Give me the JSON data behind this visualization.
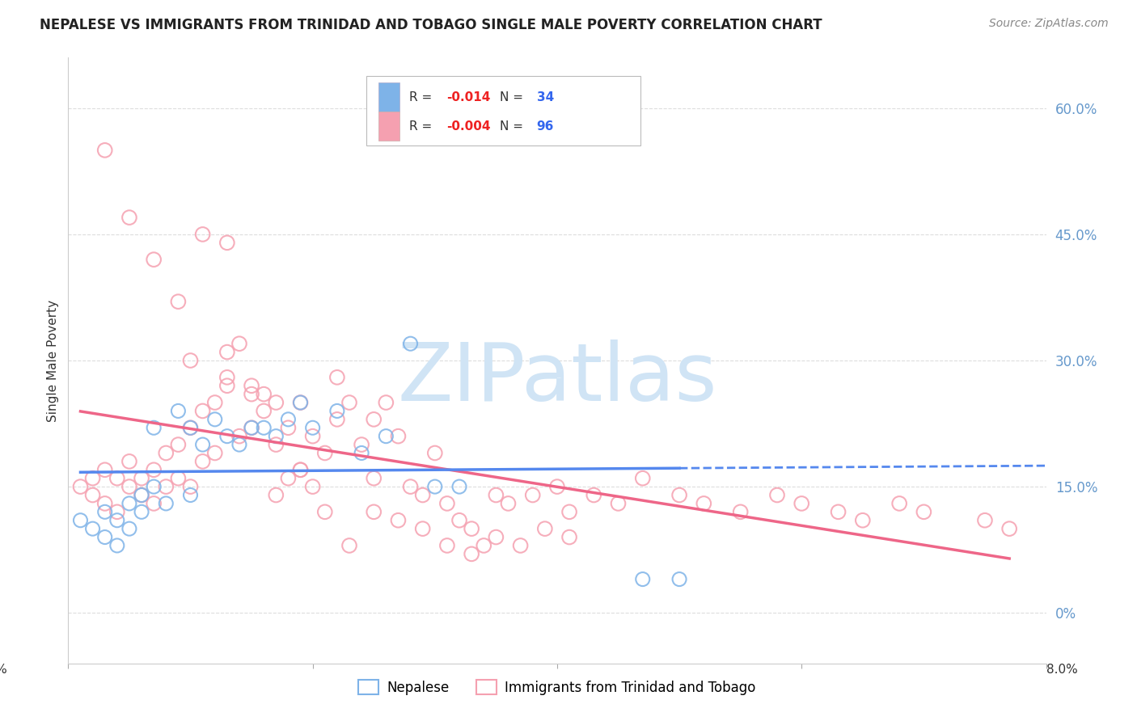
{
  "title": "NEPALESE VS IMMIGRANTS FROM TRINIDAD AND TOBAGO SINGLE MALE POVERTY CORRELATION CHART",
  "source": "Source: ZipAtlas.com",
  "ylabel": "Single Male Poverty",
  "legend_label1": "Nepalese",
  "legend_label2": "Immigrants from Trinidad and Tobago",
  "color_blue": "#7EB3E8",
  "color_pink": "#F5A0B0",
  "color_right_axis": "#6699CC",
  "ytick_values": [
    0.0,
    0.15,
    0.3,
    0.45,
    0.6
  ],
  "ytick_labels": [
    "0%",
    "15.0%",
    "30.0%",
    "45.0%",
    "60.0%"
  ],
  "xmin": 0.0,
  "xmax": 0.08,
  "ymin": -0.06,
  "ymax": 0.66,
  "nepalese_x": [
    0.001,
    0.002,
    0.003,
    0.003,
    0.004,
    0.004,
    0.005,
    0.005,
    0.006,
    0.006,
    0.007,
    0.007,
    0.008,
    0.009,
    0.01,
    0.01,
    0.011,
    0.012,
    0.013,
    0.014,
    0.015,
    0.016,
    0.017,
    0.018,
    0.019,
    0.02,
    0.022,
    0.024,
    0.026,
    0.028,
    0.03,
    0.032,
    0.047,
    0.05
  ],
  "nepalese_y": [
    0.11,
    0.1,
    0.12,
    0.09,
    0.11,
    0.08,
    0.1,
    0.13,
    0.12,
    0.14,
    0.22,
    0.15,
    0.13,
    0.24,
    0.14,
    0.22,
    0.2,
    0.23,
    0.21,
    0.2,
    0.22,
    0.22,
    0.21,
    0.23,
    0.25,
    0.22,
    0.24,
    0.19,
    0.21,
    0.32,
    0.15,
    0.15,
    0.04,
    0.04
  ],
  "tt_x": [
    0.001,
    0.002,
    0.002,
    0.003,
    0.003,
    0.004,
    0.004,
    0.005,
    0.005,
    0.006,
    0.006,
    0.007,
    0.007,
    0.008,
    0.008,
    0.009,
    0.009,
    0.01,
    0.01,
    0.01,
    0.011,
    0.011,
    0.012,
    0.012,
    0.013,
    0.013,
    0.013,
    0.014,
    0.014,
    0.015,
    0.015,
    0.016,
    0.016,
    0.017,
    0.017,
    0.018,
    0.018,
    0.019,
    0.019,
    0.02,
    0.02,
    0.021,
    0.022,
    0.022,
    0.023,
    0.024,
    0.025,
    0.025,
    0.026,
    0.027,
    0.028,
    0.029,
    0.03,
    0.031,
    0.032,
    0.033,
    0.034,
    0.035,
    0.036,
    0.038,
    0.04,
    0.041,
    0.043,
    0.045,
    0.047,
    0.05,
    0.052,
    0.055,
    0.058,
    0.06,
    0.063,
    0.065,
    0.068,
    0.07,
    0.075,
    0.077,
    0.003,
    0.005,
    0.007,
    0.009,
    0.011,
    0.013,
    0.015,
    0.017,
    0.019,
    0.021,
    0.023,
    0.025,
    0.027,
    0.029,
    0.031,
    0.033,
    0.035,
    0.037,
    0.039,
    0.041
  ],
  "tt_y": [
    0.15,
    0.14,
    0.16,
    0.13,
    0.17,
    0.12,
    0.16,
    0.15,
    0.18,
    0.16,
    0.14,
    0.13,
    0.17,
    0.15,
    0.19,
    0.16,
    0.2,
    0.15,
    0.22,
    0.3,
    0.18,
    0.24,
    0.25,
    0.19,
    0.28,
    0.31,
    0.27,
    0.32,
    0.21,
    0.26,
    0.22,
    0.24,
    0.26,
    0.2,
    0.25,
    0.22,
    0.16,
    0.25,
    0.17,
    0.15,
    0.21,
    0.19,
    0.23,
    0.28,
    0.25,
    0.2,
    0.16,
    0.23,
    0.25,
    0.21,
    0.15,
    0.14,
    0.19,
    0.13,
    0.11,
    0.1,
    0.08,
    0.14,
    0.13,
    0.14,
    0.15,
    0.12,
    0.14,
    0.13,
    0.16,
    0.14,
    0.13,
    0.12,
    0.14,
    0.13,
    0.12,
    0.11,
    0.13,
    0.12,
    0.11,
    0.1,
    0.55,
    0.47,
    0.42,
    0.37,
    0.45,
    0.44,
    0.27,
    0.14,
    0.17,
    0.12,
    0.08,
    0.12,
    0.11,
    0.1,
    0.08,
    0.07,
    0.09,
    0.08,
    0.1,
    0.09
  ],
  "watermark_color": "#D0E4F5",
  "background_color": "#FFFFFF",
  "grid_color": "#DDDDDD",
  "reg_blue": "#5588EE",
  "reg_pink": "#EE6688"
}
